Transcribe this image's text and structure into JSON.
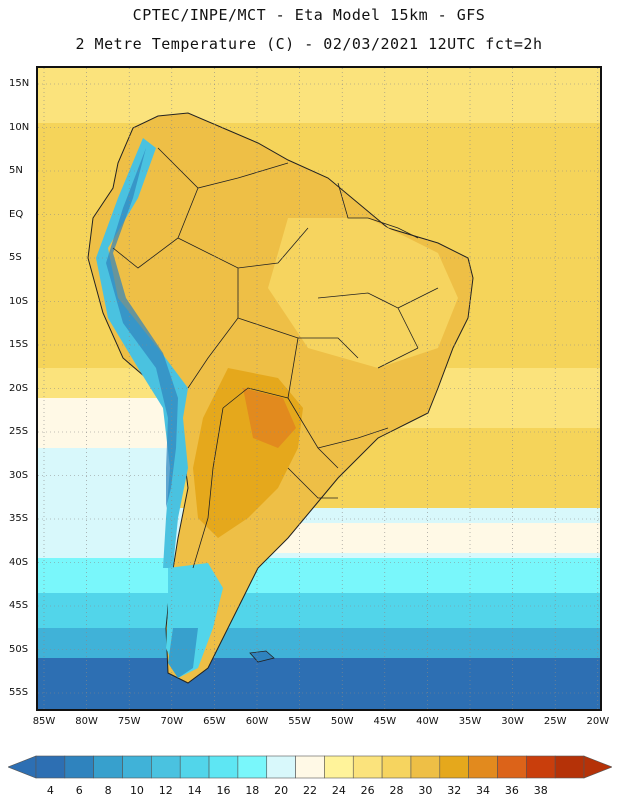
{
  "title": {
    "line1": "CPTEC/INPE/MCT -  Eta Model 15km - GFS",
    "line2": "2 Metre Temperature (C) - 02/03/2021 12UTC fct=2h"
  },
  "map": {
    "lat_labels": [
      "15N",
      "10N",
      "5N",
      "EQ",
      "5S",
      "10S",
      "15S",
      "20S",
      "25S",
      "30S",
      "35S",
      "40S",
      "45S",
      "50S",
      "55S"
    ],
    "lon_labels": [
      "85W",
      "80W",
      "75W",
      "70W",
      "65W",
      "60W",
      "55W",
      "50W",
      "45W",
      "40W",
      "35W",
      "30W",
      "25W",
      "20W"
    ],
    "grid": "dotted"
  },
  "colorbar": {
    "labels": [
      "4",
      "6",
      "8",
      "10",
      "12",
      "14",
      "16",
      "18",
      "20",
      "22",
      "24",
      "26",
      "28",
      "30",
      "32",
      "34",
      "36",
      "38"
    ],
    "colors": [
      "#2d6fb3",
      "#2f83be",
      "#37a0cd",
      "#40b2d8",
      "#4ac2e0",
      "#52d5ea",
      "#5ee6f3",
      "#79f7fb",
      "#d8f8fb",
      "#fff9e6",
      "#fff39a",
      "#fbe37c",
      "#f6d45f",
      "#eebf46",
      "#e5a81c",
      "#e28a1e",
      "#dc6319",
      "#c93e0c",
      "#b53208"
    ]
  }
}
